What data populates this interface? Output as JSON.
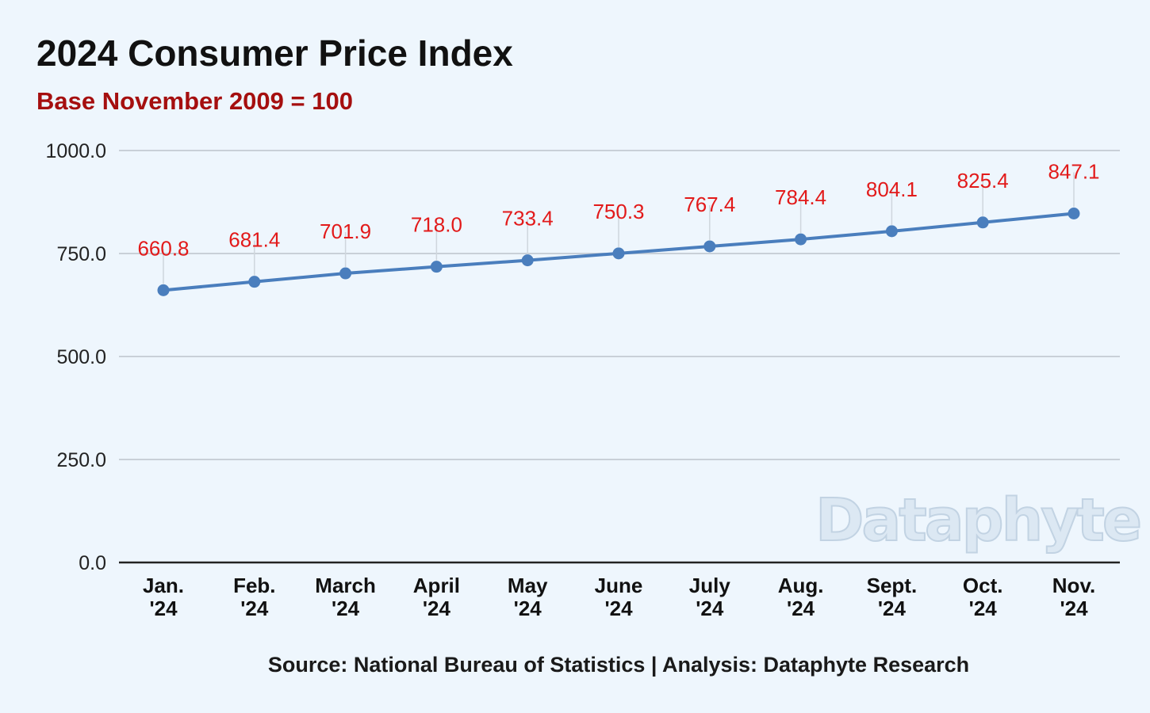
{
  "title": "2024 Consumer Price Index",
  "subtitle": "Base November 2009 = 100",
  "source": "Source: National Bureau of Statistics | Analysis: Dataphyte Research",
  "watermark": "Dataphyte",
  "colors": {
    "background": "#eef6fd",
    "line": "#4a7ebd",
    "data_label": "#e21a1a",
    "subtitle": "#a50f0f",
    "gridline": "#c9d0d8",
    "axis": "#222222"
  },
  "chart_data": {
    "type": "line",
    "title": "2024 Consumer Price Index",
    "subtitle": "Base November 2009 = 100",
    "categories": [
      [
        "Jan.",
        "'24"
      ],
      [
        "Feb.",
        "'24"
      ],
      [
        "March",
        "'24"
      ],
      [
        "April",
        "'24"
      ],
      [
        "May",
        "'24"
      ],
      [
        "June",
        "'24"
      ],
      [
        "July",
        "'24"
      ],
      [
        "Aug.",
        "'24"
      ],
      [
        "Sept.",
        "'24"
      ],
      [
        "Oct.",
        "'24"
      ],
      [
        "Nov.",
        "'24"
      ]
    ],
    "values": [
      660.8,
      681.4,
      701.9,
      718.0,
      733.4,
      750.3,
      767.4,
      784.4,
      804.1,
      825.4,
      847.1
    ],
    "data_labels": [
      "660.8",
      "681.4",
      "701.9",
      "718.0",
      "733.4",
      "750.3",
      "767.4",
      "784.4",
      "804.1",
      "825.4",
      "847.1"
    ],
    "ylim": [
      0,
      1000
    ],
    "y_ticks": [
      "0.0",
      "250.0",
      "500.0",
      "750.0",
      "1000.0"
    ],
    "xlabel": "",
    "ylabel": "",
    "grid": true,
    "legend": "none"
  }
}
